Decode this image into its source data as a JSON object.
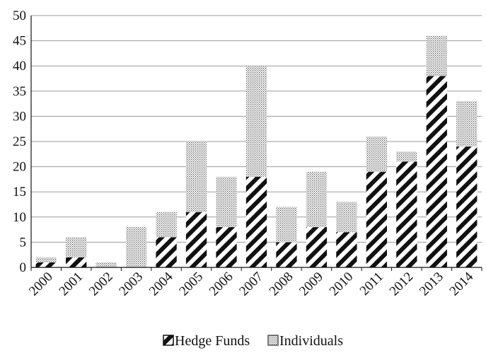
{
  "chart_data": {
    "type": "bar",
    "stacked": true,
    "categories": [
      "2000",
      "2001",
      "2002",
      "2003",
      "2004",
      "2005",
      "2006",
      "2007",
      "2008",
      "2009",
      "2010",
      "2011",
      "2012",
      "2013",
      "2014"
    ],
    "series": [
      {
        "name": "Hedge Funds",
        "values": [
          1,
          2,
          0,
          0,
          6,
          11,
          8,
          18,
          5,
          8,
          7,
          19,
          21,
          38,
          24
        ]
      },
      {
        "name": "Individuals",
        "values": [
          1,
          4,
          1,
          8,
          5,
          14,
          10,
          22,
          7,
          11,
          6,
          7,
          2,
          8,
          9
        ]
      }
    ],
    "ylim": [
      0,
      50
    ],
    "yticks": [
      0,
      5,
      10,
      15,
      20,
      25,
      30,
      35,
      40,
      45,
      50
    ],
    "grid": true,
    "legend_position": "bottom"
  }
}
